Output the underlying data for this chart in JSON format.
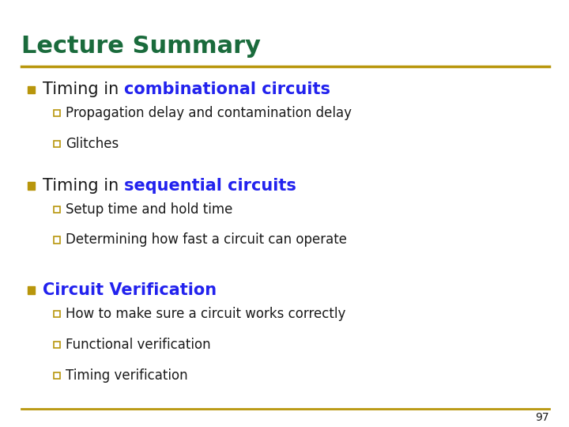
{
  "title": "Lecture Summary",
  "title_color": "#1a6b3c",
  "separator_color": "#b8960c",
  "background_color": "#ffffff",
  "bullet_color": "#b8960c",
  "sub_bullet_color": "#b8960c",
  "text_color": "#1a1a1a",
  "page_number": "97",
  "title_fontsize": 22,
  "main_fontsize": 15,
  "sub_fontsize": 12,
  "page_fontsize": 10,
  "items": [
    {
      "text_plain": "Timing in ",
      "text_highlight": "combinational circuits",
      "highlight_color": "#2222ee",
      "sub_items": [
        "Propagation delay and contamination delay",
        "Glitches"
      ]
    },
    {
      "text_plain": "Timing in ",
      "text_highlight": "sequential circuits",
      "highlight_color": "#2222ee",
      "sub_items": [
        "Setup time and hold time",
        "Determining how fast a circuit can operate"
      ]
    },
    {
      "text_plain": "",
      "text_highlight": "Circuit Verification",
      "highlight_color": "#2222ee",
      "sub_items": [
        "How to make sure a circuit works correctly",
        "Functional verification",
        "Timing verification"
      ]
    }
  ]
}
